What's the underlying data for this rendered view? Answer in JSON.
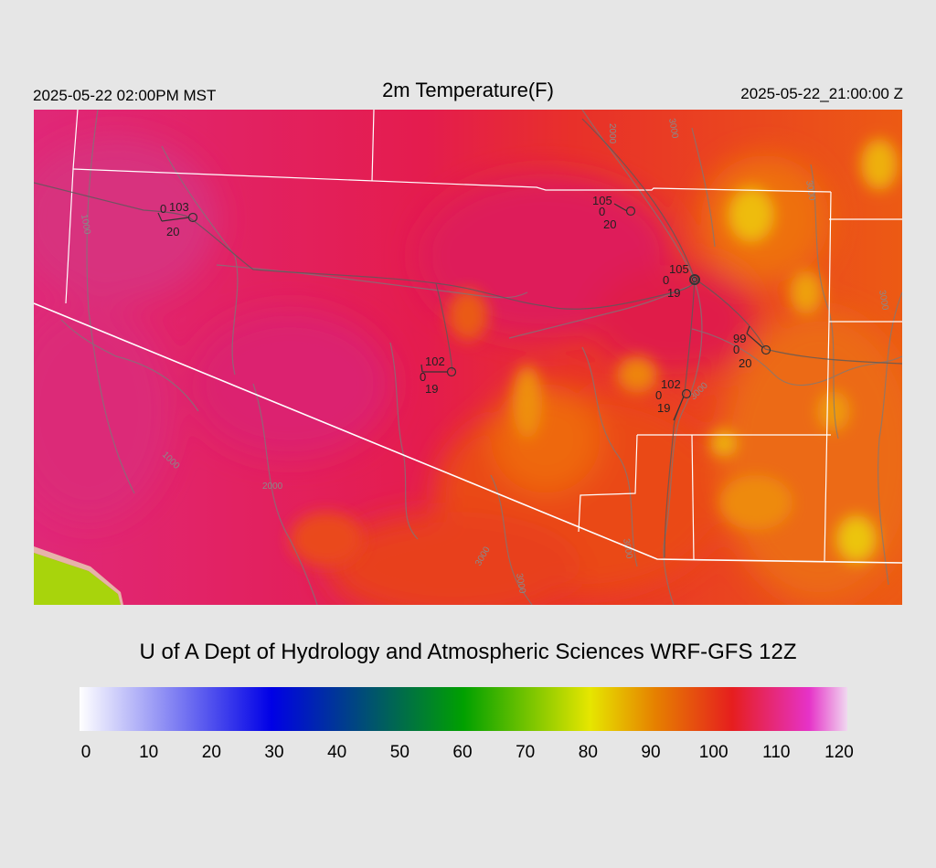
{
  "header": {
    "local_time": "2025-05-22 02:00PM MST",
    "title": "2m Temperature(F)",
    "utc_time": "2025-05-22_21:00:00 Z"
  },
  "credit": "U of A Dept of Hydrology and Atmospheric Sciences WRF-GFS 12Z",
  "colorbar": {
    "ticks": [
      "0",
      "10",
      "20",
      "30",
      "40",
      "50",
      "60",
      "70",
      "80",
      "90",
      "100",
      "110",
      "120"
    ],
    "colors": [
      "#ffffff",
      "#0000e6",
      "#00a000",
      "#e6e600",
      "#e68000",
      "#e61e1e",
      "#e632c8",
      "#f0d8f0"
    ]
  },
  "map": {
    "stations": [
      {
        "temp": "103",
        "dew": "0",
        "wind": "20"
      },
      {
        "temp": "105",
        "dew": "0",
        "wind": "20"
      },
      {
        "temp": "105",
        "dew": "0",
        "wind": "19"
      },
      {
        "temp": "102",
        "dew": "0",
        "wind": "19"
      },
      {
        "temp": "99",
        "dew": "0",
        "wind": "20"
      },
      {
        "temp": "102",
        "dew": "0",
        "wind": "19"
      }
    ],
    "contour_labels": [
      "1000",
      "1000",
      "2000",
      "2000",
      "3000",
      "3000",
      "3000",
      "3000",
      "3000",
      "3000",
      "3000"
    ]
  }
}
